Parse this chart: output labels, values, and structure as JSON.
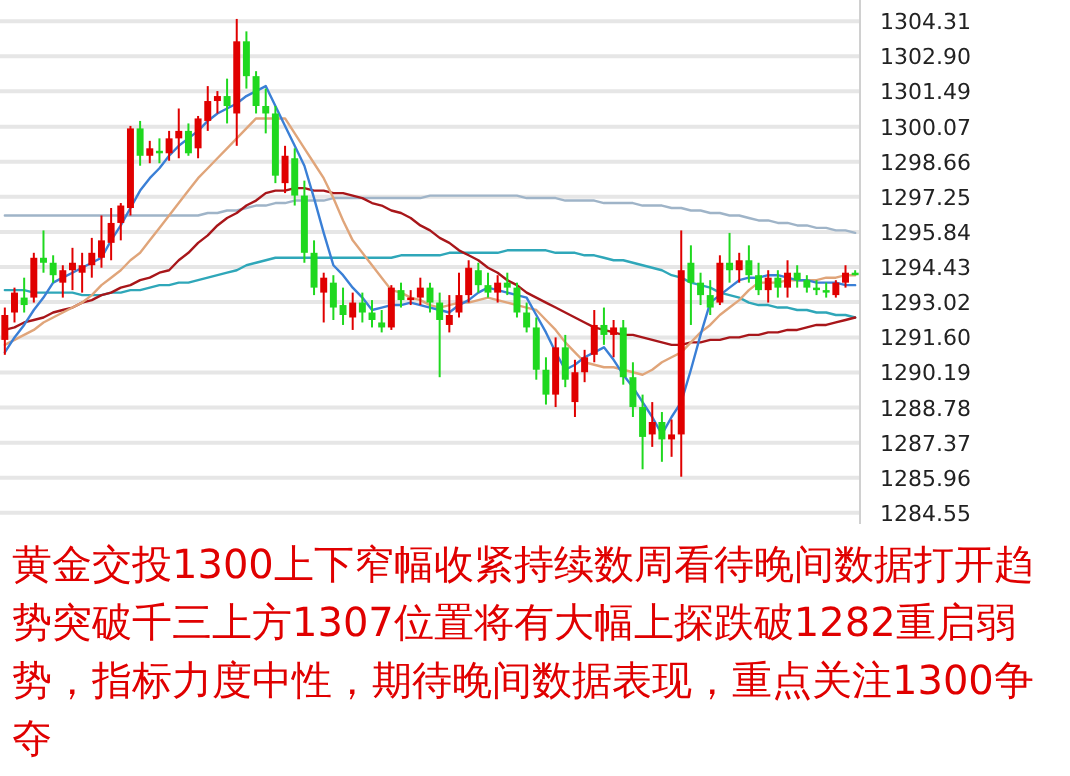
{
  "chart_data": {
    "type": "candlestick",
    "categories": [
      null,
      null,
      null,
      null,
      null,
      null,
      null,
      null,
      null,
      null,
      null,
      null,
      null,
      null,
      null,
      null,
      null,
      null,
      null,
      null,
      null,
      null,
      null,
      null,
      null,
      null,
      null,
      null,
      null,
      null,
      null,
      null,
      null,
      null,
      null,
      null,
      null,
      null,
      null,
      null,
      null,
      null,
      null,
      null,
      null,
      null,
      null,
      null,
      null,
      null,
      null,
      null,
      null,
      null,
      null,
      null,
      null,
      null,
      null,
      null,
      null,
      null,
      null,
      null,
      null,
      null,
      null,
      null,
      null,
      null,
      null,
      null,
      null,
      null,
      null,
      null,
      null,
      null,
      null,
      null,
      null,
      null,
      null,
      null,
      null,
      null,
      null,
      null,
      null
    ],
    "ohlc": [
      [
        1291.5,
        1292.8,
        1290.9,
        1292.5
      ],
      [
        1292.6,
        1293.6,
        1292.2,
        1293.4
      ],
      [
        1293.2,
        1294.0,
        1292.6,
        1292.9
      ],
      [
        1293.2,
        1295.0,
        1293.0,
        1294.8
      ],
      [
        1294.8,
        1295.9,
        1294.2,
        1294.6
      ],
      [
        1294.6,
        1294.9,
        1293.8,
        1294.1
      ],
      [
        1293.8,
        1294.5,
        1293.2,
        1294.3
      ],
      [
        1294.3,
        1295.2,
        1293.5,
        1294.6
      ],
      [
        1294.2,
        1295.0,
        1293.4,
        1294.5
      ],
      [
        1294.5,
        1295.6,
        1294.0,
        1295.0
      ],
      [
        1294.8,
        1296.5,
        1294.4,
        1295.5
      ],
      [
        1295.4,
        1296.8,
        1294.7,
        1296.2
      ],
      [
        1296.2,
        1297.0,
        1295.5,
        1296.9
      ],
      [
        1296.8,
        1300.1,
        1296.5,
        1300.0
      ],
      [
        1300.0,
        1300.3,
        1298.5,
        1298.9
      ],
      [
        1298.9,
        1299.5,
        1298.6,
        1299.2
      ],
      [
        1299.1,
        1299.6,
        1298.6,
        1299.0
      ],
      [
        1299.0,
        1299.9,
        1298.7,
        1299.6
      ],
      [
        1299.6,
        1300.8,
        1298.8,
        1299.9
      ],
      [
        1299.9,
        1300.2,
        1298.9,
        1299.0
      ],
      [
        1299.2,
        1300.5,
        1298.8,
        1300.4
      ],
      [
        1300.3,
        1301.7,
        1299.9,
        1301.1
      ],
      [
        1301.1,
        1301.5,
        1300.6,
        1301.3
      ],
      [
        1301.3,
        1302.0,
        1300.2,
        1300.9
      ],
      [
        1300.6,
        1304.4,
        1299.3,
        1303.5
      ],
      [
        1303.5,
        1303.9,
        1301.6,
        1302.1
      ],
      [
        1302.1,
        1302.3,
        1300.6,
        1300.9
      ],
      [
        1300.9,
        1301.6,
        1299.8,
        1300.6
      ],
      [
        1300.6,
        1300.9,
        1297.8,
        1298.1
      ],
      [
        1297.8,
        1299.3,
        1297.4,
        1298.9
      ],
      [
        1298.8,
        1299.2,
        1296.9,
        1297.3
      ],
      [
        1297.3,
        1297.9,
        1294.6,
        1295.0
      ],
      [
        1295.0,
        1295.5,
        1293.3,
        1293.6
      ],
      [
        1293.4,
        1294.2,
        1292.2,
        1294.0
      ],
      [
        1293.8,
        1294.1,
        1292.3,
        1292.8
      ],
      [
        1292.9,
        1293.6,
        1292.1,
        1292.5
      ],
      [
        1292.4,
        1293.4,
        1291.9,
        1293.0
      ],
      [
        1293.0,
        1293.4,
        1292.2,
        1292.6
      ],
      [
        1292.6,
        1293.1,
        1292.0,
        1292.3
      ],
      [
        1292.2,
        1292.7,
        1291.8,
        1292.0
      ],
      [
        1292.0,
        1293.7,
        1291.9,
        1293.6
      ],
      [
        1293.5,
        1293.8,
        1292.8,
        1293.1
      ],
      [
        1293.1,
        1293.5,
        1292.9,
        1293.2
      ],
      [
        1293.2,
        1294.0,
        1292.9,
        1293.6
      ],
      [
        1293.6,
        1293.8,
        1292.6,
        1293.0
      ],
      [
        1293.0,
        1293.4,
        1290.0,
        1292.3
      ],
      [
        1292.1,
        1293.3,
        1291.8,
        1292.5
      ],
      [
        1292.6,
        1294.2,
        1292.4,
        1293.3
      ],
      [
        1293.3,
        1294.7,
        1293.0,
        1294.4
      ],
      [
        1294.3,
        1294.6,
        1293.4,
        1293.7
      ],
      [
        1293.7,
        1294.2,
        1293.2,
        1293.4
      ],
      [
        1293.4,
        1294.1,
        1293.0,
        1293.8
      ],
      [
        1293.8,
        1294.2,
        1293.3,
        1293.6
      ],
      [
        1293.6,
        1293.8,
        1292.4,
        1292.6
      ],
      [
        1292.6,
        1293.0,
        1291.8,
        1292.0
      ],
      [
        1292.0,
        1292.4,
        1289.9,
        1290.3
      ],
      [
        1290.3,
        1290.8,
        1288.9,
        1289.3
      ],
      [
        1289.3,
        1291.6,
        1288.8,
        1291.2
      ],
      [
        1291.2,
        1291.7,
        1289.6,
        1289.9
      ],
      [
        1289.0,
        1290.7,
        1288.4,
        1290.2
      ],
      [
        1290.2,
        1291.1,
        1289.8,
        1290.8
      ],
      [
        1290.9,
        1292.7,
        1290.6,
        1292.1
      ],
      [
        1292.1,
        1292.8,
        1291.3,
        1291.7
      ],
      [
        1291.7,
        1292.3,
        1290.8,
        1292.0
      ],
      [
        1292.0,
        1292.3,
        1289.7,
        1290.0
      ],
      [
        1290.0,
        1290.6,
        1288.4,
        1288.8
      ],
      [
        1288.8,
        1289.3,
        1286.3,
        1287.6
      ],
      [
        1287.7,
        1289.0,
        1287.2,
        1288.2
      ],
      [
        1288.2,
        1288.6,
        1286.6,
        1287.5
      ],
      [
        1287.5,
        1288.3,
        1286.8,
        1287.7
      ],
      [
        1287.7,
        1295.9,
        1286.0,
        1294.3
      ],
      [
        1294.6,
        1295.3,
        1292.1,
        1293.8
      ],
      [
        1293.8,
        1294.2,
        1292.9,
        1293.3
      ],
      [
        1293.3,
        1293.9,
        1292.5,
        1292.8
      ],
      [
        1293.0,
        1294.9,
        1292.9,
        1294.6
      ],
      [
        1294.6,
        1295.8,
        1293.8,
        1294.3
      ],
      [
        1294.3,
        1295.0,
        1293.8,
        1294.7
      ],
      [
        1294.7,
        1295.3,
        1293.8,
        1294.1
      ],
      [
        1294.1,
        1294.6,
        1293.3,
        1293.5
      ],
      [
        1293.5,
        1294.3,
        1293.0,
        1294.0
      ],
      [
        1294.0,
        1294.3,
        1293.2,
        1293.6
      ],
      [
        1293.6,
        1294.7,
        1293.2,
        1294.2
      ],
      [
        1294.2,
        1294.5,
        1293.6,
        1293.9
      ],
      [
        1293.9,
        1294.1,
        1293.4,
        1293.6
      ],
      [
        1293.6,
        1293.9,
        1293.3,
        1293.5
      ],
      [
        1293.5,
        1293.8,
        1293.2,
        1293.4
      ],
      [
        1293.3,
        1293.9,
        1293.2,
        1293.8
      ],
      [
        1293.8,
        1294.5,
        1293.6,
        1294.2
      ],
      [
        1294.2,
        1294.3,
        1294.1,
        1294.1
      ]
    ],
    "colors": [
      "#e00000",
      "#e00000",
      "#1fd81f",
      "#e00000",
      "#1fd81f",
      "#1fd81f",
      "#e00000",
      "#e00000",
      "#e00000",
      "#e00000",
      "#e00000",
      "#e00000",
      "#e00000",
      "#e00000",
      "#1fd81f",
      "#e00000",
      "#1fd81f",
      "#e00000",
      "#e00000",
      "#1fd81f",
      "#e00000",
      "#e00000",
      "#e00000",
      "#1fd81f",
      "#e00000",
      "#1fd81f",
      "#1fd81f",
      "#1fd81f",
      "#1fd81f",
      "#e00000",
      "#1fd81f",
      "#1fd81f",
      "#1fd81f",
      "#e00000",
      "#1fd81f",
      "#1fd81f",
      "#e00000",
      "#1fd81f",
      "#1fd81f",
      "#1fd81f",
      "#e00000",
      "#1fd81f",
      "#e00000",
      "#e00000",
      "#1fd81f",
      "#1fd81f",
      "#e00000",
      "#e00000",
      "#e00000",
      "#1fd81f",
      "#1fd81f",
      "#e00000",
      "#1fd81f",
      "#1fd81f",
      "#1fd81f",
      "#1fd81f",
      "#1fd81f",
      "#e00000",
      "#1fd81f",
      "#e00000",
      "#e00000",
      "#e00000",
      "#1fd81f",
      "#e00000",
      "#1fd81f",
      "#1fd81f",
      "#1fd81f",
      "#e00000",
      "#1fd81f",
      "#e00000",
      "#e00000",
      "#1fd81f",
      "#1fd81f",
      "#1fd81f",
      "#e00000",
      "#1fd81f",
      "#e00000",
      "#1fd81f",
      "#1fd81f",
      "#e00000",
      "#1fd81f",
      "#e00000",
      "#1fd81f",
      "#1fd81f",
      "#1fd81f",
      "#1fd81f",
      "#e00000",
      "#e00000",
      "#1fd81f"
    ],
    "series": [
      {
        "type": "line",
        "color": "#9fb4c8",
        "values": [
          1296.5,
          1296.5,
          1296.5,
          1296.5,
          1296.5,
          1296.5,
          1296.5,
          1296.5,
          1296.5,
          1296.5,
          1296.5,
          1296.5,
          1296.5,
          1296.5,
          1296.5,
          1296.5,
          1296.5,
          1296.5,
          1296.5,
          1296.5,
          1296.5,
          1296.6,
          1296.6,
          1296.7,
          1296.7,
          1296.8,
          1296.9,
          1296.9,
          1297.0,
          1297.0,
          1297.1,
          1297.1,
          1297.1,
          1297.1,
          1297.2,
          1297.2,
          1297.2,
          1297.2,
          1297.2,
          1297.2,
          1297.2,
          1297.2,
          1297.2,
          1297.2,
          1297.3,
          1297.3,
          1297.3,
          1297.3,
          1297.3,
          1297.3,
          1297.3,
          1297.3,
          1297.3,
          1297.3,
          1297.2,
          1297.2,
          1297.2,
          1297.2,
          1297.1,
          1297.1,
          1297.1,
          1297.1,
          1297.0,
          1297.0,
          1297.0,
          1297.0,
          1296.9,
          1296.9,
          1296.9,
          1296.8,
          1296.8,
          1296.7,
          1296.7,
          1296.6,
          1296.6,
          1296.5,
          1296.5,
          1296.4,
          1296.3,
          1296.3,
          1296.2,
          1296.2,
          1296.1,
          1296.1,
          1296.0,
          1296.0,
          1295.9,
          1295.9,
          1295.8
        ]
      },
      {
        "type": "line",
        "color": "#2fa7b9",
        "values": [
          1293.5,
          1293.5,
          1293.5,
          1293.4,
          1293.4,
          1293.4,
          1293.4,
          1293.4,
          1293.3,
          1293.3,
          1293.3,
          1293.4,
          1293.4,
          1293.5,
          1293.5,
          1293.6,
          1293.7,
          1293.7,
          1293.8,
          1293.8,
          1293.9,
          1294.0,
          1294.1,
          1294.2,
          1294.3,
          1294.5,
          1294.6,
          1294.7,
          1294.8,
          1294.8,
          1294.8,
          1294.8,
          1294.8,
          1294.8,
          1294.8,
          1294.8,
          1294.8,
          1294.8,
          1294.8,
          1294.8,
          1294.8,
          1294.9,
          1294.9,
          1294.9,
          1294.9,
          1294.9,
          1295.0,
          1295.0,
          1295.0,
          1295.0,
          1295.0,
          1295.0,
          1295.1,
          1295.1,
          1295.1,
          1295.1,
          1295.1,
          1295.0,
          1295.0,
          1295.0,
          1294.9,
          1294.9,
          1294.8,
          1294.7,
          1294.7,
          1294.6,
          1294.5,
          1294.4,
          1294.3,
          1294.1,
          1294.0,
          1293.8,
          1293.7,
          1293.6,
          1293.4,
          1293.3,
          1293.2,
          1293.0,
          1292.9,
          1292.9,
          1292.8,
          1292.8,
          1292.7,
          1292.7,
          1292.6,
          1292.6,
          1292.5,
          1292.5,
          1292.4
        ]
      },
      {
        "type": "line",
        "color": "#a8161a",
        "values": [
          1291.9,
          1292.0,
          1292.2,
          1292.3,
          1292.4,
          1292.6,
          1292.7,
          1292.8,
          1293.0,
          1293.1,
          1293.3,
          1293.4,
          1293.6,
          1293.7,
          1293.9,
          1294.0,
          1294.2,
          1294.3,
          1294.7,
          1295.0,
          1295.4,
          1295.7,
          1296.1,
          1296.4,
          1296.6,
          1296.9,
          1297.1,
          1297.4,
          1297.5,
          1297.5,
          1297.6,
          1297.6,
          1297.5,
          1297.5,
          1297.4,
          1297.4,
          1297.3,
          1297.2,
          1297.0,
          1296.9,
          1296.7,
          1296.6,
          1296.4,
          1296.1,
          1295.9,
          1295.6,
          1295.4,
          1295.1,
          1294.9,
          1294.7,
          1294.4,
          1294.2,
          1293.9,
          1293.7,
          1293.4,
          1293.2,
          1293.0,
          1292.8,
          1292.6,
          1292.4,
          1292.2,
          1292.0,
          1291.9,
          1291.8,
          1291.7,
          1291.7,
          1291.6,
          1291.5,
          1291.4,
          1291.3,
          1291.3,
          1291.4,
          1291.4,
          1291.5,
          1291.5,
          1291.6,
          1291.6,
          1291.7,
          1291.7,
          1291.8,
          1291.8,
          1291.9,
          1291.9,
          1292.0,
          1292.1,
          1292.1,
          1292.2,
          1292.3,
          1292.4
        ]
      },
      {
        "type": "line",
        "color": "#e0a57a",
        "values": [
          1291.3,
          1291.5,
          1291.7,
          1291.9,
          1292.2,
          1292.4,
          1292.6,
          1292.8,
          1293.0,
          1293.3,
          1293.7,
          1294.0,
          1294.3,
          1294.7,
          1295.0,
          1295.5,
          1296.0,
          1296.5,
          1297.0,
          1297.5,
          1298.0,
          1298.4,
          1298.8,
          1299.2,
          1299.6,
          1300.0,
          1300.4,
          1300.4,
          1300.4,
          1300.4,
          1299.8,
          1299.2,
          1298.6,
          1298.0,
          1297.2,
          1296.3,
          1295.5,
          1295.0,
          1294.5,
          1294.0,
          1293.5,
          1293.4,
          1293.2,
          1293.1,
          1292.9,
          1292.8,
          1292.9,
          1293.0,
          1293.0,
          1293.1,
          1293.2,
          1293.1,
          1293.0,
          1292.9,
          1292.8,
          1292.7,
          1292.3,
          1291.9,
          1291.4,
          1291.0,
          1290.6,
          1290.5,
          1290.4,
          1290.4,
          1290.3,
          1290.2,
          1290.1,
          1290.3,
          1290.6,
          1290.8,
          1291.0,
          1291.4,
          1291.8,
          1292.1,
          1292.5,
          1292.8,
          1293.1,
          1293.5,
          1293.8,
          1293.8,
          1293.8,
          1293.9,
          1293.9,
          1293.9,
          1293.9,
          1294.0,
          1294.0,
          1294.1,
          1294.1
        ]
      },
      {
        "type": "line",
        "color": "#3a7fd6",
        "values": [
          1291.0,
          1291.6,
          1292.1,
          1292.7,
          1293.2,
          1293.8,
          1294.0,
          1294.2,
          1294.4,
          1294.6,
          1294.8,
          1295.5,
          1296.1,
          1296.8,
          1297.5,
          1298.0,
          1298.4,
          1298.9,
          1299.3,
          1299.6,
          1299.9,
          1300.3,
          1300.6,
          1300.8,
          1301.0,
          1301.3,
          1301.5,
          1301.7,
          1300.9,
          1300.1,
          1299.3,
          1298.5,
          1297.2,
          1295.8,
          1294.5,
          1294.1,
          1293.6,
          1293.2,
          1292.7,
          1292.8,
          1292.9,
          1292.9,
          1293.0,
          1292.9,
          1292.8,
          1292.7,
          1292.6,
          1292.9,
          1293.1,
          1293.4,
          1293.6,
          1293.5,
          1293.4,
          1293.3,
          1293.2,
          1292.5,
          1291.8,
          1291.0,
          1290.3,
          1290.5,
          1290.8,
          1291.0,
          1291.2,
          1290.7,
          1290.1,
          1289.6,
          1289.0,
          1288.4,
          1287.7,
          1288.4,
          1289.0,
          1290.3,
          1291.7,
          1293.0,
          1293.3,
          1293.6,
          1293.9,
          1294.0,
          1294.0,
          1294.1,
          1294.1,
          1294.0,
          1293.9,
          1293.9,
          1293.8,
          1293.8,
          1293.8,
          1293.7,
          1293.7
        ]
      }
    ],
    "ylim": [
      1284.1,
      1305.0
    ],
    "yticks": [
      1304.31,
      {
        "value": 1302.9,
        "label": "1302.90"
      },
      1301.49,
      1300.07,
      1298.66,
      1297.25,
      1295.84,
      1294.43,
      1293.02,
      {
        "value": 1291.6,
        "label": "1291.60"
      },
      1290.19,
      1288.78,
      1287.37,
      1285.96,
      1284.55
    ],
    "grid": "y",
    "tick_labels": "y",
    "annotations": [
      "黄金交投1300上下窄幅收紧持续数周看待晚间数据打开趋势突破千三上方1307位置将有大幅上探跌破1282重启弱势，指标力度中性，期待晚间数据表现，重点关注1300争夺"
    ]
  }
}
